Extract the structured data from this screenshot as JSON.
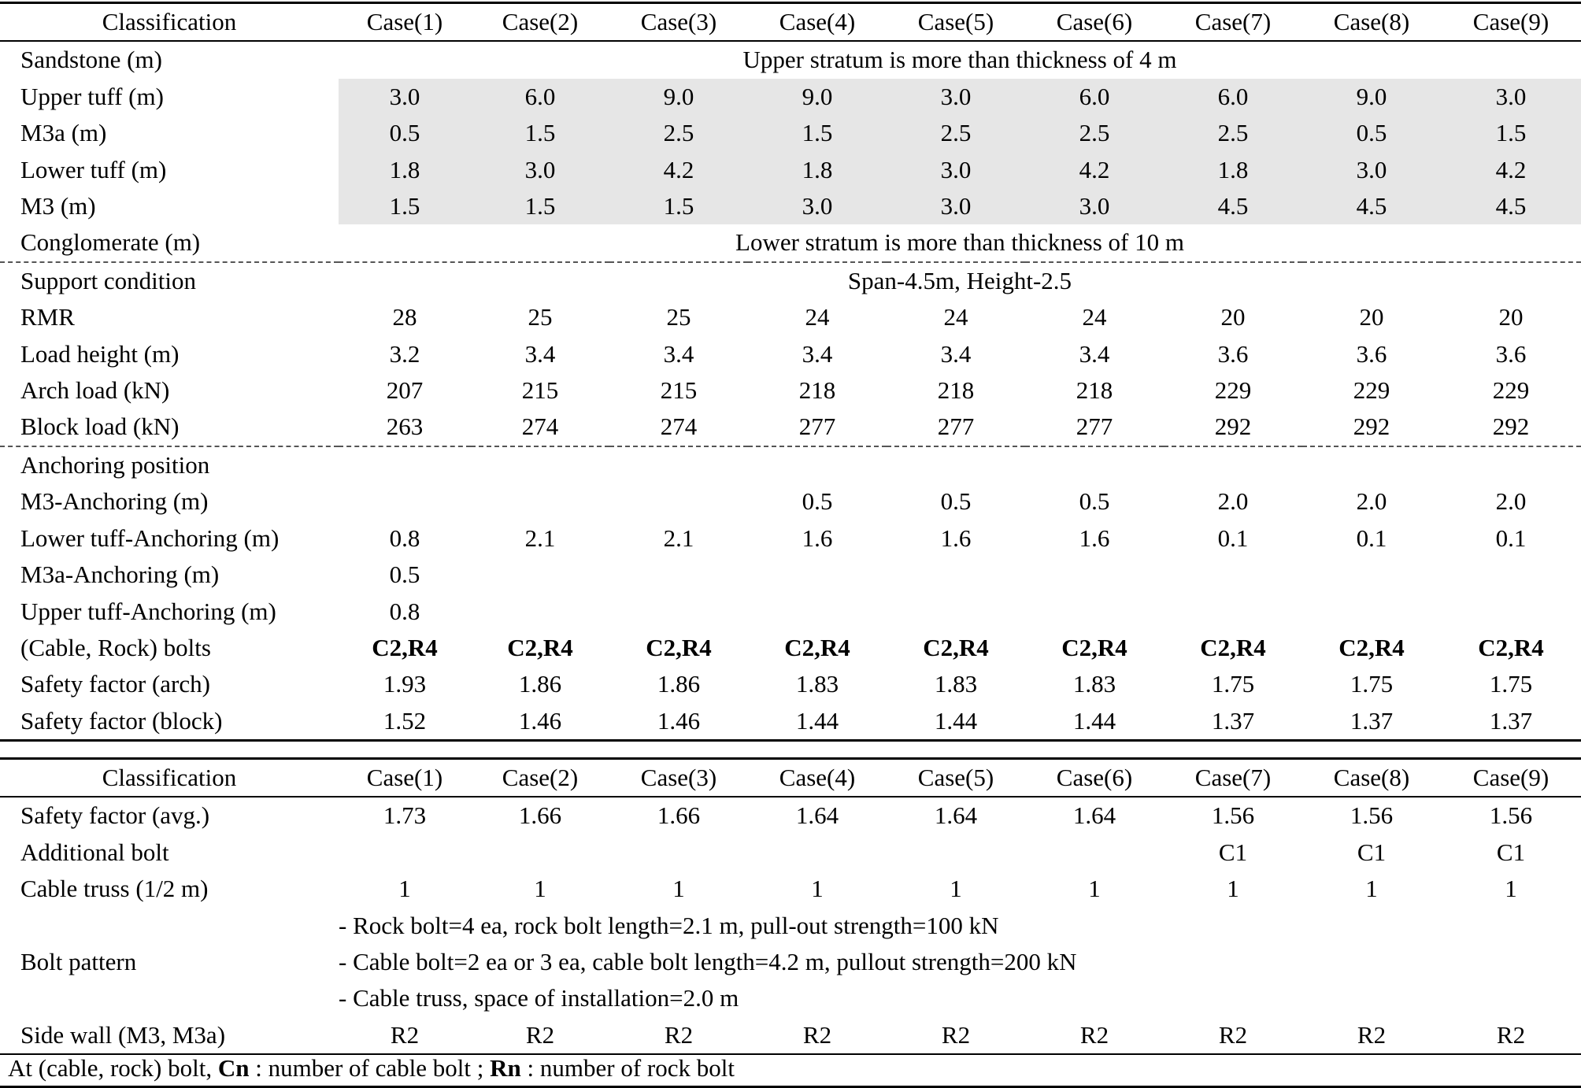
{
  "header": {
    "classification": "Classification",
    "cases": [
      "Case(1)",
      "Case(2)",
      "Case(3)",
      "Case(4)",
      "Case(5)",
      "Case(6)",
      "Case(7)",
      "Case(8)",
      "Case(9)"
    ]
  },
  "strata": {
    "sandstone_label": "Sandstone (m)",
    "sandstone_note": "Upper stratum is more than thickness of 4 m",
    "rows": [
      {
        "label": "Upper tuff (m)",
        "values": [
          "3.0",
          "6.0",
          "9.0",
          "9.0",
          "3.0",
          "6.0",
          "6.0",
          "9.0",
          "3.0"
        ]
      },
      {
        "label": "M3a (m)",
        "values": [
          "0.5",
          "1.5",
          "2.5",
          "1.5",
          "2.5",
          "2.5",
          "2.5",
          "0.5",
          "1.5"
        ]
      },
      {
        "label": "Lower tuff (m)",
        "values": [
          "1.8",
          "3.0",
          "4.2",
          "1.8",
          "3.0",
          "4.2",
          "1.8",
          "3.0",
          "4.2"
        ]
      },
      {
        "label": "M3 (m)",
        "values": [
          "1.5",
          "1.5",
          "1.5",
          "3.0",
          "3.0",
          "3.0",
          "4.5",
          "4.5",
          "4.5"
        ]
      }
    ],
    "conglomerate_label": "Conglomerate (m)",
    "conglomerate_note": "Lower stratum is more than thickness of 10 m"
  },
  "support": {
    "label": "Support condition",
    "note": "Span-4.5m, Height-2.5",
    "rows": [
      {
        "label": "RMR",
        "values": [
          "28",
          "25",
          "25",
          "24",
          "24",
          "24",
          "20",
          "20",
          "20"
        ]
      },
      {
        "label": "Load height (m)",
        "values": [
          "3.2",
          "3.4",
          "3.4",
          "3.4",
          "3.4",
          "3.4",
          "3.6",
          "3.6",
          "3.6"
        ]
      },
      {
        "label": "Arch load (kN)",
        "values": [
          "207",
          "215",
          "215",
          "218",
          "218",
          "218",
          "229",
          "229",
          "229"
        ]
      },
      {
        "label": "Block load (kN)",
        "values": [
          "263",
          "274",
          "274",
          "277",
          "277",
          "277",
          "292",
          "292",
          "292"
        ]
      }
    ]
  },
  "anchoring": {
    "label": "Anchoring position",
    "rows": [
      {
        "label": "M3-Anchoring (m)",
        "values": [
          "",
          "",
          "",
          "0.5",
          "0.5",
          "0.5",
          "2.0",
          "2.0",
          "2.0"
        ]
      },
      {
        "label": "Lower tuff-Anchoring (m)",
        "values": [
          "0.8",
          "2.1",
          "2.1",
          "1.6",
          "1.6",
          "1.6",
          "0.1",
          "0.1",
          "0.1"
        ]
      },
      {
        "label": "M3a-Anchoring (m)",
        "values": [
          "0.5",
          "",
          "",
          "",
          "",
          "",
          "",
          "",
          ""
        ]
      },
      {
        "label": "Upper tuff-Anchoring (m)",
        "values": [
          "0.8",
          "",
          "",
          "",
          "",
          "",
          "",
          "",
          ""
        ]
      },
      {
        "label": "(Cable, Rock) bolts",
        "values": [
          "C2,R4",
          "C2,R4",
          "C2,R4",
          "C2,R4",
          "C2,R4",
          "C2,R4",
          "C2,R4",
          "C2,R4",
          "C2,R4"
        ],
        "bold": true
      },
      {
        "label": "Safety factor (arch)",
        "values": [
          "1.93",
          "1.86",
          "1.86",
          "1.83",
          "1.83",
          "1.83",
          "1.75",
          "1.75",
          "1.75"
        ]
      },
      {
        "label": "Safety factor (block)",
        "values": [
          "1.52",
          "1.46",
          "1.46",
          "1.44",
          "1.44",
          "1.44",
          "1.37",
          "1.37",
          "1.37"
        ]
      }
    ]
  },
  "table2": {
    "rows": [
      {
        "label": "Safety factor (avg.)",
        "values": [
          "1.73",
          "1.66",
          "1.66",
          "1.64",
          "1.64",
          "1.64",
          "1.56",
          "1.56",
          "1.56"
        ]
      },
      {
        "label": "Additional bolt",
        "values": [
          "",
          "",
          "",
          "",
          "",
          "",
          "C1",
          "C1",
          "C1"
        ]
      },
      {
        "label": "Cable truss (1/2 m)",
        "values": [
          "1",
          "1",
          "1",
          "1",
          "1",
          "1",
          "1",
          "1",
          "1"
        ]
      }
    ],
    "bolt_pattern_label": "Bolt pattern",
    "bolt_pattern_lines": [
      "- Rock bolt=4 ea, rock bolt length=2.1 m, pull-out strength=100 kN",
      "- Cable bolt=2 ea or 3 ea, cable bolt length=4.2 m, pullout strength=200 kN",
      "- Cable truss, space of installation=2.0 m"
    ],
    "side_wall": {
      "label": "Side wall (M3, M3a)",
      "values": [
        "R2",
        "R2",
        "R2",
        "R2",
        "R2",
        "R2",
        "R2",
        "R2",
        "R2"
      ]
    }
  },
  "footnote": {
    "prefix": "At (cable, rock) bolt, ",
    "cn": "Cn",
    "cn_text": " : number of cable bolt ; ",
    "rn": "Rn",
    "rn_text": " : number of rock bolt"
  }
}
